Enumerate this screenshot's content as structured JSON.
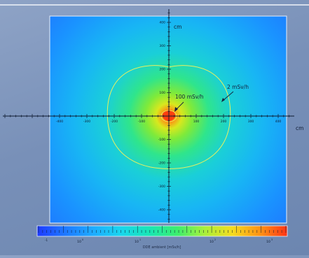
{
  "chart_data": {
    "type": "heatmap",
    "title": "",
    "x_unit": "cm",
    "y_unit": "cm",
    "xlim": [
      -440,
      440
    ],
    "ylim": [
      -440,
      440
    ],
    "x_ticks": [
      -400,
      -300,
      -200,
      -100,
      0,
      100,
      200,
      300,
      400
    ],
    "y_ticks": [
      400,
      300,
      200,
      100,
      0,
      -100,
      -200,
      -300,
      -400
    ],
    "x_tick_labels": [
      "-400",
      "-300",
      "-200",
      "-100",
      "0",
      "100",
      "200",
      "300",
      "400"
    ],
    "y_tick_labels": [
      "400",
      "300",
      "200",
      "100",
      "0",
      "-100",
      "-200",
      "-300",
      "-400"
    ],
    "colormap": [
      "#1e3aff",
      "#1e73ff",
      "#1eaaff",
      "#19d4ef",
      "#19e6b4",
      "#3cee6e",
      "#aaf03a",
      "#f5dc1e",
      "#ff8c14",
      "#ff3214"
    ],
    "contours": [
      {
        "label": "2 mSv/h",
        "radius_x": 225,
        "radius_y": 225,
        "color": "#e8f060"
      },
      {
        "label": "100 mSv/h",
        "radius_x": 28,
        "radius_y": 24,
        "color": "#e8f060"
      }
    ],
    "colorbar": {
      "label": "DDE ambient [mSv/h]",
      "tick_labels": [
        "10",
        "10",
        "10",
        "10",
        "10"
      ],
      "tick_exponents": [
        "-1",
        "0",
        "1",
        "2",
        "3"
      ]
    }
  }
}
